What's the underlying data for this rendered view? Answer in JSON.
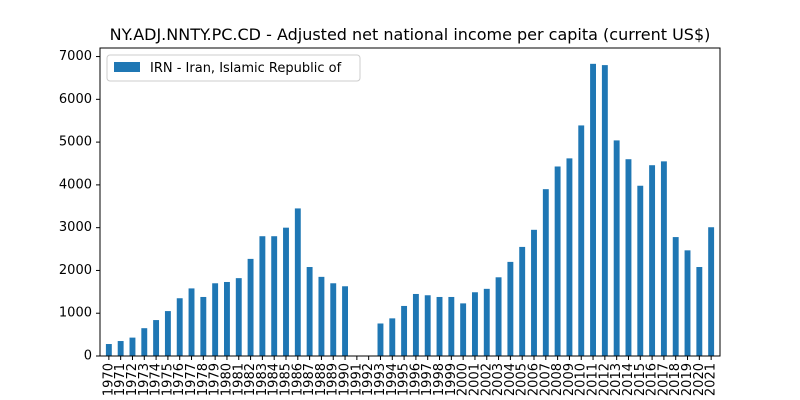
{
  "chart_data": {
    "type": "bar",
    "title": "NY.ADJ.NNTY.PC.CD - Adjusted net national income per capita (current US$)",
    "xlabel": "",
    "ylabel": "",
    "ylim": [
      0,
      7200
    ],
    "yticks": [
      0,
      1000,
      2000,
      3000,
      4000,
      5000,
      6000,
      7000
    ],
    "legend_position": "top-left",
    "grid": false,
    "categories": [
      "1970",
      "1971",
      "1972",
      "1973",
      "1974",
      "1975",
      "1976",
      "1977",
      "1978",
      "1979",
      "1980",
      "1981",
      "1982",
      "1983",
      "1984",
      "1985",
      "1986",
      "1987",
      "1988",
      "1989",
      "1990",
      "1991",
      "1992",
      "1993",
      "1994",
      "1995",
      "1996",
      "1997",
      "1998",
      "1999",
      "2000",
      "2001",
      "2002",
      "2003",
      "2004",
      "2005",
      "2006",
      "2007",
      "2008",
      "2009",
      "2010",
      "2011",
      "2012",
      "2013",
      "2014",
      "2015",
      "2016",
      "2017",
      "2018",
      "2019",
      "2020",
      "2021"
    ],
    "series": [
      {
        "name": "IRN - Iran, Islamic Republic of",
        "color": "#1f77b4",
        "values": [
          280,
          350,
          430,
          650,
          840,
          1050,
          1350,
          1580,
          1380,
          1700,
          1730,
          1820,
          2270,
          2800,
          2800,
          3000,
          3450,
          2080,
          1850,
          1700,
          1630,
          null,
          null,
          760,
          880,
          1170,
          1450,
          1420,
          1380,
          1380,
          1230,
          1490,
          1570,
          1840,
          2200,
          2550,
          2950,
          3900,
          4430,
          4620,
          5390,
          6830,
          6800,
          5040,
          4600,
          3980,
          4460,
          4550,
          2780,
          2470,
          2080,
          3010
        ]
      }
    ]
  }
}
